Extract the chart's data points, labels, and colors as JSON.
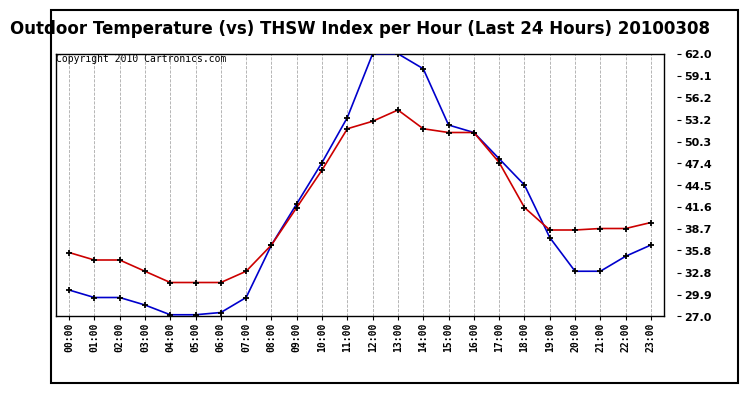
{
  "title": "Outdoor Temperature (vs) THSW Index per Hour (Last 24 Hours) 20100308",
  "copyright": "Copyright 2010 Cartronics.com",
  "hours": [
    "00:00",
    "01:00",
    "02:00",
    "03:00",
    "04:00",
    "05:00",
    "06:00",
    "07:00",
    "08:00",
    "09:00",
    "10:00",
    "11:00",
    "12:00",
    "13:00",
    "14:00",
    "15:00",
    "16:00",
    "17:00",
    "18:00",
    "19:00",
    "20:00",
    "21:00",
    "22:00",
    "23:00"
  ],
  "blue_data": [
    30.5,
    29.5,
    29.5,
    28.5,
    27.2,
    27.2,
    27.5,
    29.5,
    36.5,
    42.0,
    47.5,
    53.5,
    62.0,
    62.0,
    60.0,
    52.5,
    51.5,
    48.0,
    44.5,
    37.5,
    33.0,
    33.0,
    35.0,
    36.5
  ],
  "red_data": [
    35.5,
    34.5,
    34.5,
    33.0,
    31.5,
    31.5,
    31.5,
    33.0,
    36.5,
    41.5,
    46.5,
    52.0,
    53.0,
    54.5,
    52.0,
    51.5,
    51.5,
    47.5,
    41.5,
    38.5,
    38.5,
    38.7,
    38.7,
    39.5
  ],
  "ylim": [
    27.0,
    62.0
  ],
  "yticks": [
    27.0,
    29.9,
    32.8,
    35.8,
    38.7,
    41.6,
    44.5,
    47.4,
    50.3,
    53.2,
    56.2,
    59.1,
    62.0
  ],
  "blue_color": "#0000CC",
  "red_color": "#CC0000",
  "bg_color": "#FFFFFF",
  "grid_color": "#AAAAAA",
  "title_fontsize": 12,
  "copyright_fontsize": 7,
  "tick_fontsize": 8,
  "xtick_fontsize": 7
}
